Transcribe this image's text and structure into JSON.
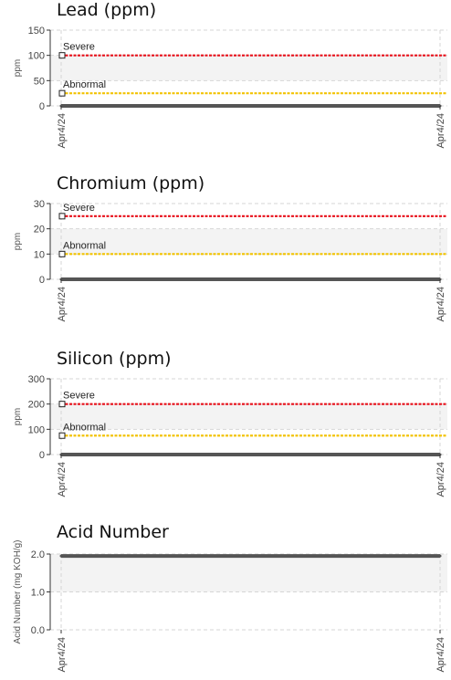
{
  "chart_data": [
    {
      "type": "line",
      "title": "Lead (ppm)",
      "ylabel": "ppm",
      "xlabel": "",
      "ylim": [
        0,
        150
      ],
      "yticks": [
        0,
        50,
        100,
        150
      ],
      "ytick_labels": [
        "0",
        "50",
        "100",
        "150"
      ],
      "x": [
        "Apr4/24",
        "Apr4/24"
      ],
      "series": [
        {
          "values": [
            0,
            0
          ],
          "color": "#555555"
        }
      ],
      "reference_lines": [
        {
          "name": "Severe",
          "value": 100,
          "color": "#e8101a"
        },
        {
          "name": "Abnormal",
          "value": 25,
          "color": "#f2c300"
        }
      ],
      "shaded_band": [
        50,
        100
      ],
      "grid": true
    },
    {
      "type": "line",
      "title": "Chromium (ppm)",
      "ylabel": "ppm",
      "xlabel": "",
      "ylim": [
        0,
        30
      ],
      "yticks": [
        0,
        10,
        20,
        30
      ],
      "ytick_labels": [
        "0",
        "10",
        "20",
        "30"
      ],
      "x": [
        "Apr4/24",
        "Apr4/24"
      ],
      "series": [
        {
          "values": [
            0,
            0
          ],
          "color": "#555555"
        }
      ],
      "reference_lines": [
        {
          "name": "Severe",
          "value": 25,
          "color": "#e8101a"
        },
        {
          "name": "Abnormal",
          "value": 10,
          "color": "#f2c300"
        }
      ],
      "shaded_band": [
        10,
        20
      ],
      "grid": true
    },
    {
      "type": "line",
      "title": "Silicon (ppm)",
      "ylabel": "ppm",
      "xlabel": "",
      "ylim": [
        0,
        300
      ],
      "yticks": [
        0,
        100,
        200,
        300
      ],
      "ytick_labels": [
        "0",
        "100",
        "200",
        "300"
      ],
      "x": [
        "Apr4/24",
        "Apr4/24"
      ],
      "series": [
        {
          "values": [
            0,
            0
          ],
          "color": "#555555"
        }
      ],
      "reference_lines": [
        {
          "name": "Severe",
          "value": 200,
          "color": "#e8101a"
        },
        {
          "name": "Abnormal",
          "value": 75,
          "color": "#f2c300"
        }
      ],
      "shaded_band": [
        100,
        200
      ],
      "grid": true
    },
    {
      "type": "line",
      "title": "Acid Number",
      "ylabel": "Acid Number (mg KOH/g)",
      "xlabel": "",
      "ylim": [
        0,
        2
      ],
      "yticks": [
        0,
        1,
        2
      ],
      "ytick_labels": [
        "0.0",
        "1.0",
        "2.0"
      ],
      "x": [
        "Apr4/24",
        "Apr4/24"
      ],
      "series": [
        {
          "values": [
            1.95,
            1.95
          ],
          "color": "#555555"
        }
      ],
      "reference_lines": [],
      "shaded_band": [
        1,
        2
      ],
      "grid": true
    }
  ]
}
